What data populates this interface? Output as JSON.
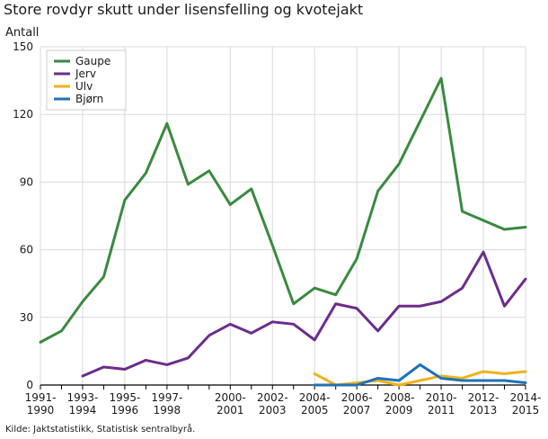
{
  "chart_data": {
    "type": "line",
    "title": "Store rovdyr skutt under lisensfelling og kvotejakt",
    "ylabel": "Antall",
    "xlabel": "",
    "source": "Kilde: Jaktstatistikk, Statistisk sentralbyrå.",
    "ylim": [
      0,
      150
    ],
    "yticks": [
      0,
      30,
      60,
      90,
      120,
      150
    ],
    "grid": true,
    "legend_position": "top-left",
    "categories": [
      "1991-1990",
      "1992-1993",
      "1993-1994",
      "1994-1995",
      "1995-1996",
      "1996-1997",
      "1997-1998",
      "1998-1999",
      "1999-2000",
      "2000-2001",
      "2001-2002",
      "2002-2003",
      "2003-2004",
      "2004-2005",
      "2005-2006",
      "2006-2007",
      "2007-2008",
      "2008-2009",
      "2009-2010",
      "2010-2011",
      "2011-2012",
      "2012-2013",
      "2013-2014",
      "2014-2015"
    ],
    "x_tick_labels": [
      {
        "index": 0,
        "line1": "1991-",
        "line2": "1990"
      },
      {
        "index": 2,
        "line1": "1993-",
        "line2": "1994"
      },
      {
        "index": 4,
        "line1": "1995-",
        "line2": "1996"
      },
      {
        "index": 6,
        "line1": "1997-",
        "line2": "1998"
      },
      {
        "index": 9,
        "line1": "2000-",
        "line2": "2001"
      },
      {
        "index": 11,
        "line1": "2002-",
        "line2": "2003"
      },
      {
        "index": 13,
        "line1": "2004-",
        "line2": "2005"
      },
      {
        "index": 15,
        "line1": "2006-",
        "line2": "2007"
      },
      {
        "index": 17,
        "line1": "2008-",
        "line2": "2009"
      },
      {
        "index": 19,
        "line1": "2010-",
        "line2": "2011"
      },
      {
        "index": 21,
        "line1": "2012-",
        "line2": "2013"
      },
      {
        "index": 23,
        "line1": "2014-",
        "line2": "2015"
      }
    ],
    "series": [
      {
        "name": "Gaupe",
        "color": "#3a8a3f",
        "values": [
          19,
          24,
          37,
          48,
          82,
          94,
          116,
          89,
          95,
          80,
          87,
          62,
          36,
          43,
          40,
          56,
          86,
          98,
          117,
          136,
          77,
          73,
          69,
          70
        ]
      },
      {
        "name": "Jerv",
        "color": "#6b2d8c",
        "values": [
          null,
          null,
          4,
          8,
          7,
          11,
          9,
          12,
          22,
          27,
          23,
          28,
          27,
          20,
          36,
          34,
          24,
          35,
          35,
          37,
          43,
          59,
          35,
          47
        ]
      },
      {
        "name": "Ulv",
        "color": "#f0b21c",
        "values": [
          null,
          null,
          null,
          null,
          null,
          null,
          null,
          null,
          null,
          null,
          null,
          null,
          null,
          5,
          0,
          1,
          2,
          0,
          2,
          4,
          3,
          6,
          5,
          6
        ]
      },
      {
        "name": "Bjørn",
        "color": "#1f72b8",
        "values": [
          null,
          null,
          null,
          null,
          null,
          null,
          null,
          null,
          null,
          null,
          null,
          null,
          null,
          0,
          0,
          0,
          3,
          2,
          9,
          3,
          2,
          2,
          2,
          1
        ]
      }
    ]
  }
}
